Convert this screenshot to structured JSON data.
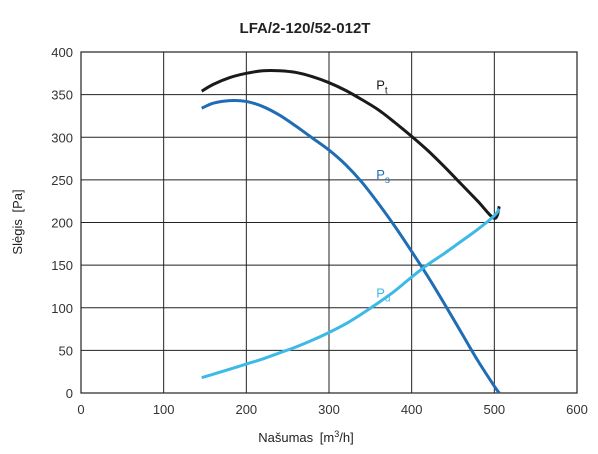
{
  "chart_data": {
    "type": "line",
    "title": "LFA/2-120/52-012T",
    "xlabel": "Našumas",
    "xunit_prefix": "[m",
    "xunit_sup": "3",
    "xunit_suffix": "/h]",
    "ylabel": "Slėgis",
    "yunit": "[Pa]",
    "xlim": [
      0,
      600
    ],
    "ylim": [
      0,
      400
    ],
    "xticks": [
      0,
      100,
      200,
      300,
      400,
      500,
      600
    ],
    "yticks": [
      0,
      50,
      100,
      150,
      200,
      250,
      300,
      350,
      400
    ],
    "grid": true,
    "series": [
      {
        "name": "Pt",
        "label_main": "P",
        "label_sub": "t",
        "color": "#1a1a1a",
        "x": [
          146,
          160,
          180,
          200,
          220,
          240,
          260,
          280,
          300,
          320,
          340,
          360,
          380,
          400,
          420,
          440,
          460,
          480,
          500,
          506
        ],
        "y": [
          354,
          362,
          370,
          375,
          378,
          378,
          376,
          371,
          364,
          355,
          344,
          332,
          317,
          301,
          284,
          265,
          245,
          225,
          205,
          219
        ]
      },
      {
        "name": "Ps",
        "label_main": "P",
        "label_sub": "s",
        "color": "#1f6db5",
        "x": [
          146,
          160,
          180,
          200,
          220,
          240,
          260,
          280,
          300,
          320,
          340,
          360,
          380,
          400,
          420,
          440,
          460,
          480,
          500,
          506
        ],
        "y": [
          334,
          340,
          343,
          342,
          336,
          326,
          313,
          299,
          285,
          268,
          247,
          222,
          195,
          166,
          136,
          104,
          71,
          38,
          8,
          0
        ]
      },
      {
        "name": "Pd",
        "label_main": "P",
        "label_sub": "d",
        "color": "#3db9e8",
        "x": [
          146,
          160,
          180,
          200,
          220,
          240,
          260,
          280,
          300,
          320,
          340,
          360,
          380,
          400,
          420,
          440,
          460,
          480,
          500,
          506
        ],
        "y": [
          18,
          22,
          28,
          34,
          40,
          47,
          54,
          62,
          71,
          81,
          93,
          106,
          120,
          136,
          151,
          164,
          178,
          192,
          208,
          216
        ]
      }
    ],
    "curve_labels": [
      {
        "series": "Pt",
        "x": 345,
        "y": 362
      },
      {
        "series": "Ps",
        "x": 345,
        "y": 257
      },
      {
        "series": "Pd",
        "x": 345,
        "y": 118
      }
    ]
  }
}
